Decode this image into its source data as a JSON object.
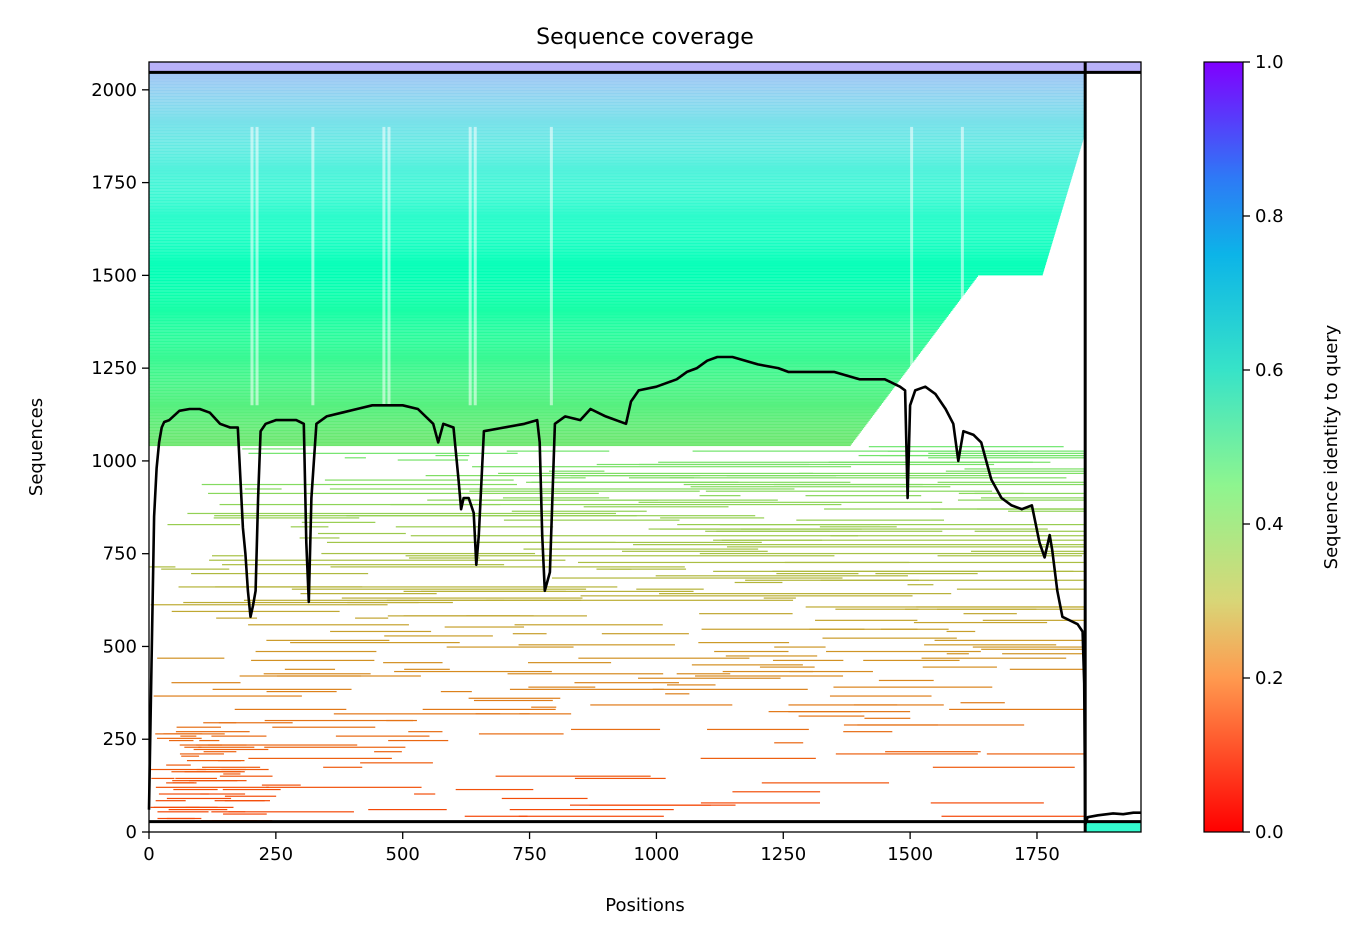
{
  "chart_data": {
    "type": "heatmap",
    "title": "Sequence coverage",
    "xlabel": "Positions",
    "ylabel": "Sequences",
    "xlim": [
      0,
      1955
    ],
    "ylim": [
      0,
      2075
    ],
    "x_ticks": [
      0,
      250,
      500,
      750,
      1000,
      1250,
      1500,
      1750
    ],
    "y_ticks": [
      0,
      250,
      500,
      750,
      1000,
      1250,
      1500,
      1750,
      2000
    ],
    "colorbar": {
      "label": "Sequence identity to query",
      "range": [
        0,
        1
      ],
      "ticks": [
        "0.0",
        "0.2",
        "0.4",
        "0.6",
        "0.8",
        "1.0"
      ],
      "colormap": "rainbow_r"
    },
    "grid": false,
    "chain_boundaries": {
      "vertical_x": [
        1845
      ],
      "horizontal_y": [
        28,
        2047
      ]
    },
    "coverage_line": {
      "name": "coverage",
      "x": [
        0,
        5,
        10,
        15,
        20,
        25,
        30,
        40,
        60,
        80,
        100,
        120,
        140,
        160,
        175,
        185,
        190,
        195,
        200,
        205,
        210,
        215,
        220,
        230,
        250,
        270,
        290,
        305,
        310,
        315,
        320,
        330,
        350,
        380,
        410,
        440,
        470,
        500,
        530,
        560,
        570,
        580,
        600,
        610,
        615,
        620,
        630,
        640,
        645,
        650,
        660,
        700,
        740,
        765,
        770,
        775,
        780,
        790,
        800,
        820,
        850,
        870,
        900,
        940,
        950,
        965,
        1000,
        1040,
        1060,
        1080,
        1100,
        1120,
        1150,
        1200,
        1240,
        1260,
        1300,
        1350,
        1400,
        1450,
        1480,
        1490,
        1495,
        1500,
        1510,
        1530,
        1550,
        1570,
        1585,
        1595,
        1605,
        1625,
        1640,
        1650,
        1660,
        1680,
        1700,
        1720,
        1740,
        1755,
        1765,
        1775,
        1780,
        1790,
        1800,
        1815,
        1830,
        1840,
        1843,
        1845,
        1850,
        1870,
        1900,
        1920,
        1940,
        1955
      ],
      "y": [
        60,
        450,
        850,
        980,
        1050,
        1090,
        1105,
        1110,
        1135,
        1140,
        1140,
        1130,
        1100,
        1090,
        1090,
        820,
        750,
        650,
        580,
        610,
        650,
        900,
        1080,
        1100,
        1110,
        1110,
        1110,
        1100,
        780,
        620,
        900,
        1100,
        1120,
        1130,
        1140,
        1150,
        1150,
        1150,
        1140,
        1100,
        1050,
        1100,
        1090,
        950,
        870,
        900,
        900,
        860,
        720,
        800,
        1080,
        1090,
        1100,
        1110,
        1050,
        800,
        650,
        700,
        1100,
        1120,
        1110,
        1140,
        1120,
        1100,
        1160,
        1190,
        1200,
        1220,
        1240,
        1250,
        1270,
        1280,
        1280,
        1260,
        1250,
        1240,
        1240,
        1240,
        1220,
        1220,
        1200,
        1190,
        900,
        1150,
        1190,
        1200,
        1180,
        1140,
        1100,
        1000,
        1080,
        1070,
        1050,
        1000,
        950,
        900,
        880,
        870,
        880,
        780,
        740,
        800,
        760,
        650,
        580,
        570,
        560,
        540,
        400,
        20,
        40,
        45,
        50,
        48,
        52,
        52
      ]
    }
  }
}
